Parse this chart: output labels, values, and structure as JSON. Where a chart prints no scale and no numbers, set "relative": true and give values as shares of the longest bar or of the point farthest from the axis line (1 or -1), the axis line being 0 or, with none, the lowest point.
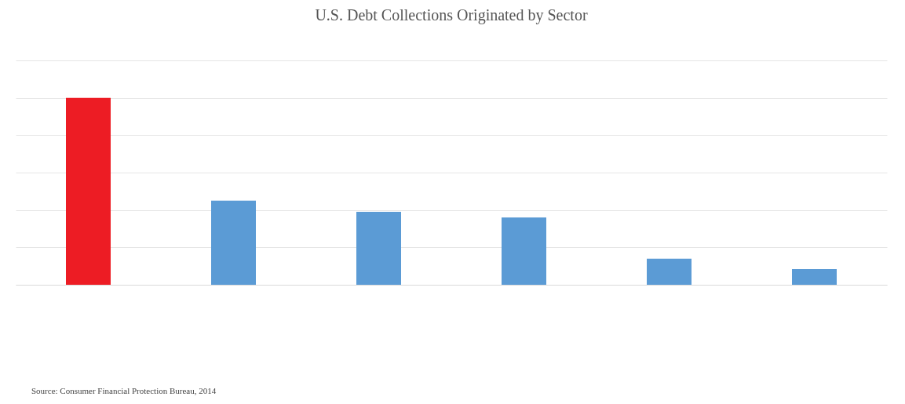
{
  "chart_data": {
    "type": "bar",
    "title": "U.S. Debt Collections Originated by Sector",
    "relative": true,
    "categories": [
      null,
      null,
      null,
      null,
      null,
      null
    ],
    "values": [
      1,
      0.45,
      0.39,
      0.36,
      0.14,
      0.084
    ],
    "colors": [
      "#ed1c24",
      "#5b9bd5",
      "#5b9bd5",
      "#5b9bd5",
      "#5b9bd5",
      "#5b9bd5"
    ],
    "grid": "y",
    "annotations": [
      "Source: Consumer Financial Protection Bureau, 2014"
    ]
  }
}
